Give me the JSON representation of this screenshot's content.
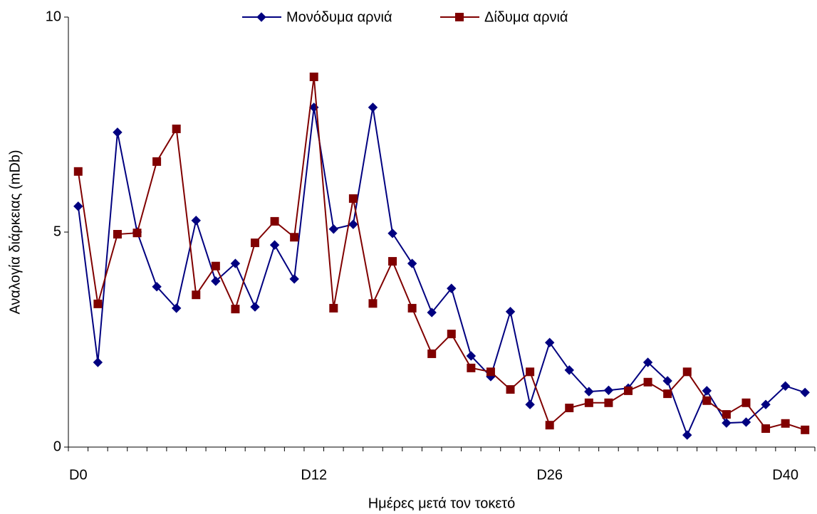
{
  "chart_data": {
    "type": "line",
    "x_label": "Ημέρες μετά τον τοκετό",
    "y_label": "Αναλογία διάρκειας (mDb)",
    "categories": [
      "D0",
      null,
      null,
      null,
      null,
      null,
      null,
      null,
      null,
      null,
      null,
      null,
      "D12",
      null,
      null,
      null,
      null,
      null,
      null,
      null,
      null,
      null,
      null,
      null,
      "D26",
      null,
      null,
      null,
      null,
      null,
      null,
      null,
      null,
      null,
      null,
      null,
      "D40",
      null
    ],
    "series": [
      {
        "name": "Μονόδυμα αρνιά",
        "color": "#000080",
        "marker": "diamond",
        "values": [
          5.6,
          1.97,
          7.32,
          5.0,
          3.73,
          3.23,
          5.27,
          3.86,
          4.27,
          3.26,
          4.7,
          3.91,
          7.9,
          5.07,
          5.18,
          7.9,
          4.97,
          4.27,
          3.13,
          3.69,
          2.12,
          1.64,
          3.15,
          0.99,
          2.43,
          1.79,
          1.29,
          1.32,
          1.37,
          1.97,
          1.54,
          0.28,
          1.31,
          0.56,
          0.58,
          0.99,
          1.42,
          1.27
        ]
      },
      {
        "name": "Δίδυμα αρνιά",
        "color": "#800000",
        "marker": "square",
        "values": [
          6.41,
          3.33,
          4.95,
          4.98,
          6.64,
          7.4,
          3.54,
          4.21,
          3.21,
          4.75,
          5.25,
          4.88,
          8.61,
          3.23,
          5.78,
          3.34,
          4.32,
          3.23,
          2.17,
          2.63,
          1.84,
          1.75,
          1.34,
          1.75,
          0.51,
          0.91,
          1.03,
          1.03,
          1.31,
          1.51,
          1.24,
          1.75,
          1.08,
          0.76,
          1.03,
          0.43,
          0.55,
          0.4
        ]
      }
    ],
    "ylim": [
      0,
      10
    ],
    "yticks": [
      0,
      5,
      10
    ],
    "grid": false,
    "legend": "top"
  }
}
